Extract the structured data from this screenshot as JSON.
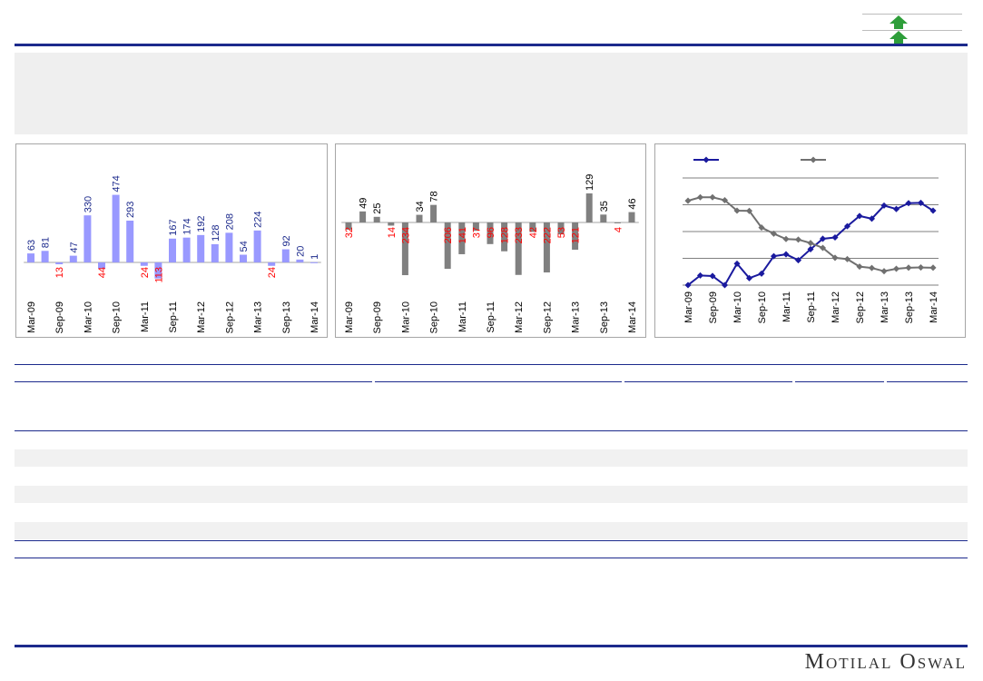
{
  "brand": {
    "logo_text": "Motilal Oswal"
  },
  "indicators": [
    {
      "name": "up-arrow-icon",
      "color": "#2e9e3a"
    },
    {
      "name": "up-arrow-icon",
      "color": "#2e9e3a"
    }
  ],
  "colors": {
    "brand": "#1c2a8c",
    "bar_blue": "#9999ff",
    "bar_grey": "#808080",
    "neg_label": "#ff0000",
    "pos_label_blue": "#1c2a8c",
    "line_blue": "#1a1a9e",
    "line_grey": "#707070"
  },
  "chart_data": [
    {
      "type": "bar",
      "categories": [
        "Mar-09",
        "Jun-09",
        "Sep-09",
        "Dec-09",
        "Mar-10",
        "Jun-10",
        "Sep-10",
        "Dec-10",
        "Mar-11",
        "Jun-11",
        "Sep-11",
        "Dec-11",
        "Mar-12",
        "Jun-12",
        "Sep-12",
        "Dec-12",
        "Mar-13",
        "Jun-13",
        "Sep-13",
        "Dec-13",
        "Mar-14"
      ],
      "tick_labels": [
        "Mar-09",
        "Sep-09",
        "Mar-10",
        "Sep-10",
        "Mar-11",
        "Sep-11",
        "Mar-12",
        "Sep-12",
        "Mar-13",
        "Sep-13",
        "Mar-14"
      ],
      "values": [
        63,
        81,
        -13,
        47,
        330,
        -44,
        474,
        293,
        -24,
        -113,
        167,
        174,
        192,
        128,
        208,
        54,
        224,
        -24,
        92,
        20,
        1
      ],
      "data_labels": [
        "63",
        "81",
        "13",
        "47",
        "330",
        "44",
        "474",
        "293",
        "24",
        "113",
        "167",
        "174",
        "192",
        "128",
        "208",
        "54",
        "224",
        "24",
        "92",
        "20",
        "1"
      ],
      "ylim": [
        -130,
        500
      ]
    },
    {
      "type": "bar",
      "categories": [
        "Mar-09",
        "Jun-09",
        "Sep-09",
        "Dec-09",
        "Mar-10",
        "Jun-10",
        "Sep-10",
        "Dec-10",
        "Mar-11",
        "Jun-11",
        "Sep-11",
        "Dec-11",
        "Mar-12",
        "Jun-12",
        "Sep-12",
        "Dec-12",
        "Mar-13",
        "Jun-13",
        "Sep-13",
        "Dec-13",
        "Mar-14"
      ],
      "tick_labels": [
        "Mar-09",
        "Sep-09",
        "Mar-10",
        "Sep-10",
        "Mar-11",
        "Sep-11",
        "Mar-12",
        "Sep-12",
        "Mar-13",
        "Sep-13",
        "Mar-14"
      ],
      "values": [
        -32,
        49,
        25,
        -14,
        -234,
        34,
        78,
        -206,
        -141,
        -37,
        -96,
        -128,
        -233,
        -42,
        -222,
        -53,
        -121,
        129,
        35,
        -4,
        46
      ],
      "data_labels": [
        "32",
        "49",
        "25",
        "14",
        "234",
        "34",
        "78",
        "206",
        "141",
        "37",
        "96",
        "128",
        "233",
        "42",
        "222",
        "53",
        "121",
        "129",
        "35",
        "4",
        "46"
      ],
      "ylim": [
        -240,
        140
      ]
    },
    {
      "type": "line",
      "x": [
        "Mar-09",
        "Jun-09",
        "Sep-09",
        "Dec-09",
        "Mar-10",
        "Jun-10",
        "Sep-10",
        "Dec-10",
        "Mar-11",
        "Jun-11",
        "Sep-11",
        "Dec-11",
        "Mar-12",
        "Jun-12",
        "Sep-12",
        "Dec-12",
        "Mar-13",
        "Jun-13",
        "Sep-13",
        "Dec-13",
        "Mar-14"
      ],
      "tick_labels": [
        "Mar-09",
        "Sep-09",
        "Mar-10",
        "Sep-10",
        "Mar-11",
        "Sep-11",
        "Mar-12",
        "Sep-12",
        "Mar-13",
        "Sep-13",
        "Mar-14"
      ],
      "series": [
        {
          "values": [
            0.0,
            0.36,
            0.34,
            0.0,
            0.8,
            0.26,
            0.43,
            1.08,
            1.15,
            0.93,
            1.34,
            1.73,
            1.78,
            2.2,
            2.58,
            2.48,
            2.97,
            2.84,
            3.06,
            3.07,
            2.78
          ]
        },
        {
          "values": [
            3.15,
            3.28,
            3.28,
            3.17,
            2.78,
            2.77,
            2.15,
            1.92,
            1.72,
            1.7,
            1.57,
            1.39,
            1.02,
            0.97,
            0.69,
            0.64,
            0.52,
            0.61,
            0.65,
            0.66,
            0.65
          ]
        }
      ],
      "ylim": [
        0,
        4
      ],
      "grid": true,
      "legend": "top-left"
    }
  ]
}
